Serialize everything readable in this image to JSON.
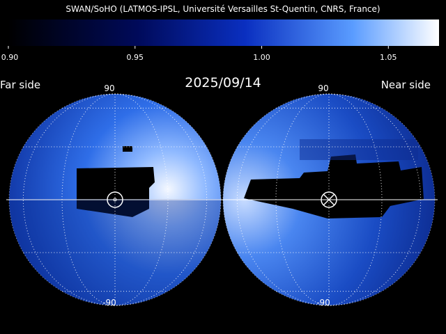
{
  "title": "SWAN/SoHO (LATMOS-IPSL, Université Versailles St-Quentin, CNRS, France)",
  "colorbar": {
    "lim": [
      0.9,
      1.07
    ],
    "ticks": [
      {
        "value": 0.9,
        "label": "0.90"
      },
      {
        "value": 0.95,
        "label": "0.95"
      },
      {
        "value": 1.0,
        "label": "1.00"
      },
      {
        "value": 1.05,
        "label": "1.05"
      }
    ]
  },
  "date": "2025/09/14",
  "far_side": {
    "label": "Far side",
    "top": "90",
    "bottom": "-90"
  },
  "near_side": {
    "label": "Near side",
    "top": "90",
    "bottom": "-90"
  }
}
